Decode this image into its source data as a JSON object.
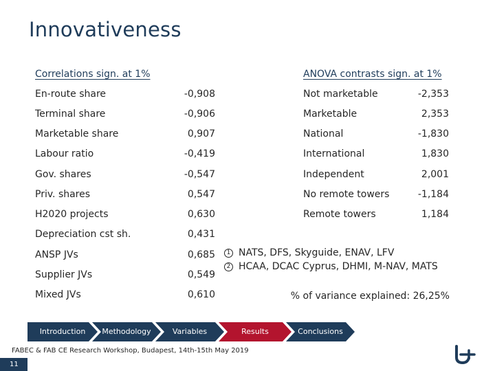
{
  "title": "Innovativeness",
  "correlations": {
    "heading": "Correlations sign. at 1%",
    "rows": [
      {
        "label": "En-route share",
        "value": "-0,908"
      },
      {
        "label": "Terminal share",
        "value": "-0,906"
      },
      {
        "label": "Marketable share",
        "value": "0,907"
      },
      {
        "label": "Labour ratio",
        "value": "-0,419"
      },
      {
        "label": "Gov. shares",
        "value": "-0,547"
      },
      {
        "label": "Priv. shares",
        "value": "0,547"
      },
      {
        "label": "H2020 projects",
        "value": "0,630"
      },
      {
        "label": "Depreciation cst sh.",
        "value": "0,431"
      },
      {
        "label": "ANSP JVs",
        "value": "0,685"
      },
      {
        "label": "Supplier JVs",
        "value": "0,549"
      },
      {
        "label": "Mixed JVs",
        "value": "0,610"
      }
    ]
  },
  "anova": {
    "heading": "ANOVA contrasts sign. at 1%",
    "rows": [
      {
        "label": "Not marketable",
        "value": "-2,353"
      },
      {
        "label": "Marketable",
        "value": "2,353"
      },
      {
        "label": "National",
        "value": "-1,830"
      },
      {
        "label": "International",
        "value": "1,830"
      },
      {
        "label": "Independent",
        "value": "2,001"
      },
      {
        "label": "No remote towers",
        "value": "-1,184"
      },
      {
        "label": "Remote towers",
        "value": "1,184"
      }
    ]
  },
  "notes": [
    {
      "marker": "1",
      "text": "NATS, DFS, Skyguide, ENAV, LFV"
    },
    {
      "marker": "2",
      "text": "HCAA, DCAC Cyprus, DHMI, M-NAV, MATS"
    }
  ],
  "variance": "% of variance explained: 26,25%",
  "nav": [
    {
      "label": "Introduction",
      "active": false
    },
    {
      "label": "Methodology",
      "active": false
    },
    {
      "label": "Variables",
      "active": false
    },
    {
      "label": "Results",
      "active": true
    },
    {
      "label": "Conclusions",
      "active": false
    }
  ],
  "footer": "FABEC & FAB CE Research Workshop, Budapest, 14th-15th May 2019",
  "page_number": "11",
  "colors": {
    "primary": "#1f3c5a",
    "accent": "#b3142e"
  }
}
